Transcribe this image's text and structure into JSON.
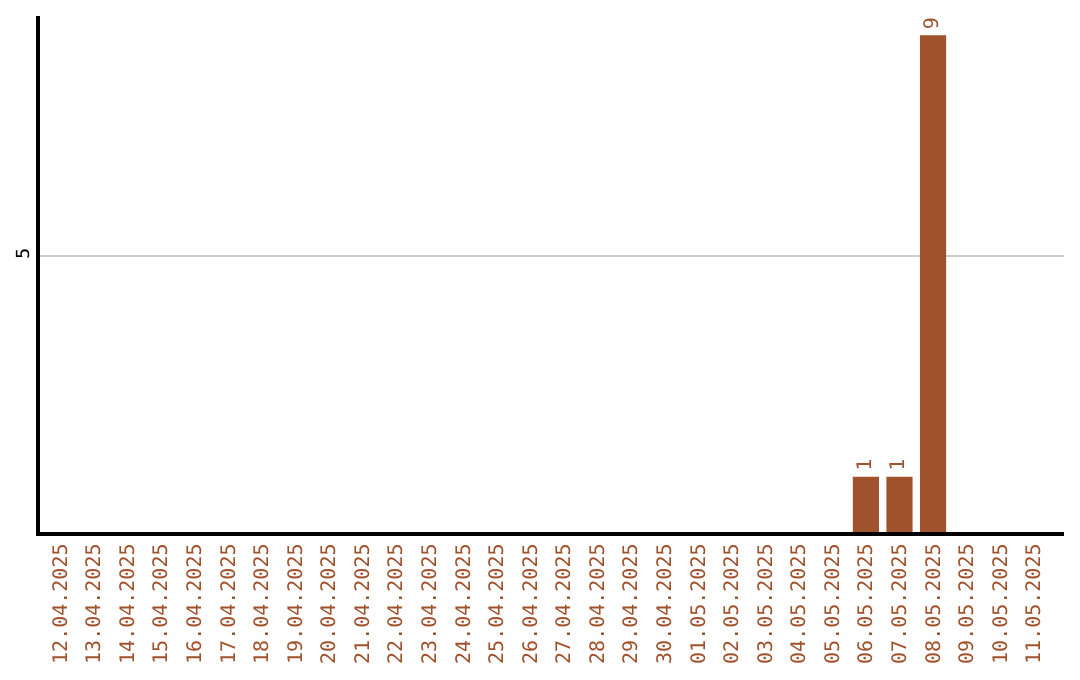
{
  "chart_data": {
    "type": "bar",
    "categories": [
      "12.04.2025",
      "13.04.2025",
      "14.04.2025",
      "15.04.2025",
      "16.04.2025",
      "17.04.2025",
      "18.04.2025",
      "19.04.2025",
      "20.04.2025",
      "21.04.2025",
      "22.04.2025",
      "23.04.2025",
      "24.04.2025",
      "25.04.2025",
      "26.04.2025",
      "27.04.2025",
      "28.04.2025",
      "29.04.2025",
      "30.04.2025",
      "01.05.2025",
      "02.05.2025",
      "03.05.2025",
      "04.05.2025",
      "05.05.2025",
      "06.05.2025",
      "07.05.2025",
      "08.05.2025",
      "09.05.2025",
      "10.05.2025",
      "11.05.2025"
    ],
    "values": [
      null,
      null,
      null,
      null,
      null,
      null,
      null,
      null,
      null,
      null,
      null,
      null,
      null,
      null,
      null,
      null,
      null,
      null,
      null,
      null,
      null,
      null,
      null,
      null,
      1,
      1,
      9,
      null,
      null,
      null
    ],
    "data_labels": true,
    "color": "#a0522d",
    "ylim": [
      0,
      9.35
    ],
    "yticks": [
      5
    ],
    "grid": "y"
  }
}
